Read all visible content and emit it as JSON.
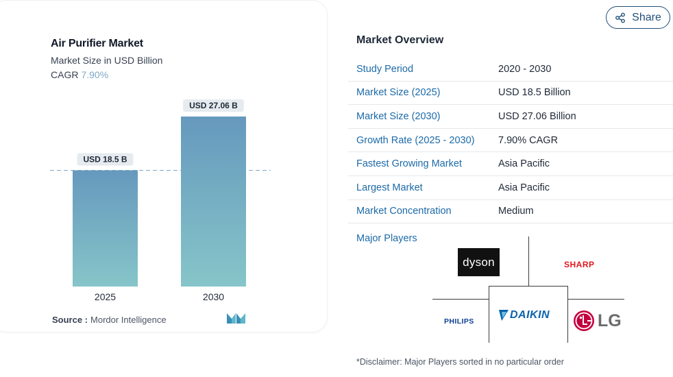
{
  "chart_data": {
    "type": "bar",
    "title": "Air Purifier Market",
    "subtitle": "Market Size in USD Billion",
    "cagr_label": "CAGR",
    "cagr_value": "7.90%",
    "categories": [
      "2025",
      "2030"
    ],
    "values": [
      18.5,
      27.06
    ],
    "data_labels": [
      "USD 18.5 B",
      "USD 27.06 B"
    ],
    "xlabel": "",
    "ylabel": "",
    "ylim": [
      0,
      27.06
    ],
    "reference_line_value": 18.5,
    "bar_color_top": "#6699bd",
    "bar_color_bottom": "#86c5c9",
    "grid": false
  },
  "source": {
    "label": "Source :",
    "value": "Mordor Intelligence"
  },
  "share": {
    "label": "Share",
    "icon": "share-icon"
  },
  "overview": {
    "title": "Market Overview",
    "rows": [
      {
        "key": "Study Period",
        "value": "2020 - 2030"
      },
      {
        "key": "Market Size (2025)",
        "value": "USD 18.5 Billion"
      },
      {
        "key": "Market Size (2030)",
        "value": "USD 27.06 Billion"
      },
      {
        "key": "Growth Rate (2025 - 2030)",
        "value": "7.90% CAGR"
      },
      {
        "key": "Fastest Growing Market",
        "value": "Asia Pacific"
      },
      {
        "key": "Largest Market",
        "value": "Asia Pacific"
      },
      {
        "key": "Market Concentration",
        "value": "Medium"
      }
    ]
  },
  "major_players": {
    "label": "Major Players",
    "logos": {
      "dyson": "dyson",
      "sharp": "SHARP",
      "philips": "PHILIPS",
      "daikin": "DAIKIN",
      "lg": "LG"
    }
  },
  "disclaimer": "*Disclaimer: Major Players sorted in no particular order"
}
